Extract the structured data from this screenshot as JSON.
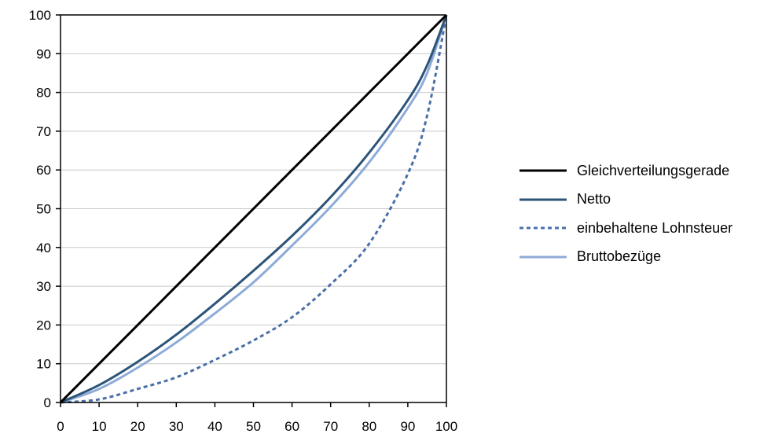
{
  "chart_data": {
    "type": "line",
    "title": "",
    "xlabel": "",
    "ylabel": "",
    "xlim": [
      0,
      100
    ],
    "ylim": [
      0,
      100
    ],
    "x_ticks": [
      "0",
      "10",
      "20",
      "30",
      "40",
      "50",
      "60",
      "70",
      "80",
      "90",
      "100"
    ],
    "y_ticks": [
      "0",
      "10",
      "20",
      "30",
      "40",
      "50",
      "60",
      "70",
      "80",
      "90",
      "100"
    ],
    "grid": "horizontal",
    "legend_position": "right",
    "x": [
      0,
      10,
      20,
      30,
      40,
      50,
      60,
      70,
      80,
      90,
      95,
      100
    ],
    "series": [
      {
        "name": "Gleichverteilungsgerade",
        "color": "#000000",
        "dash": "solid",
        "values": [
          0,
          10,
          20,
          30,
          40,
          50,
          60,
          70,
          80,
          90,
          95,
          100
        ]
      },
      {
        "name": "Netto",
        "color": "#2c5478",
        "dash": "solid",
        "values": [
          0,
          4.5,
          10.5,
          17.5,
          25.5,
          34,
          43,
          53,
          64.5,
          78,
          87,
          100
        ]
      },
      {
        "name": "einbehaltene Lohnsteuer",
        "color": "#4a6fa8",
        "dash": "dashed",
        "values": [
          0,
          0.8,
          3.5,
          6.5,
          11,
          16,
          22,
          30.5,
          41,
          59,
          74,
          100
        ]
      },
      {
        "name": "Bruttobezüge",
        "color": "#8eabd8",
        "dash": "solid",
        "values": [
          0,
          3.5,
          9,
          15.5,
          23,
          31,
          40.5,
          50.5,
          62,
          76,
          85,
          100
        ]
      }
    ]
  }
}
